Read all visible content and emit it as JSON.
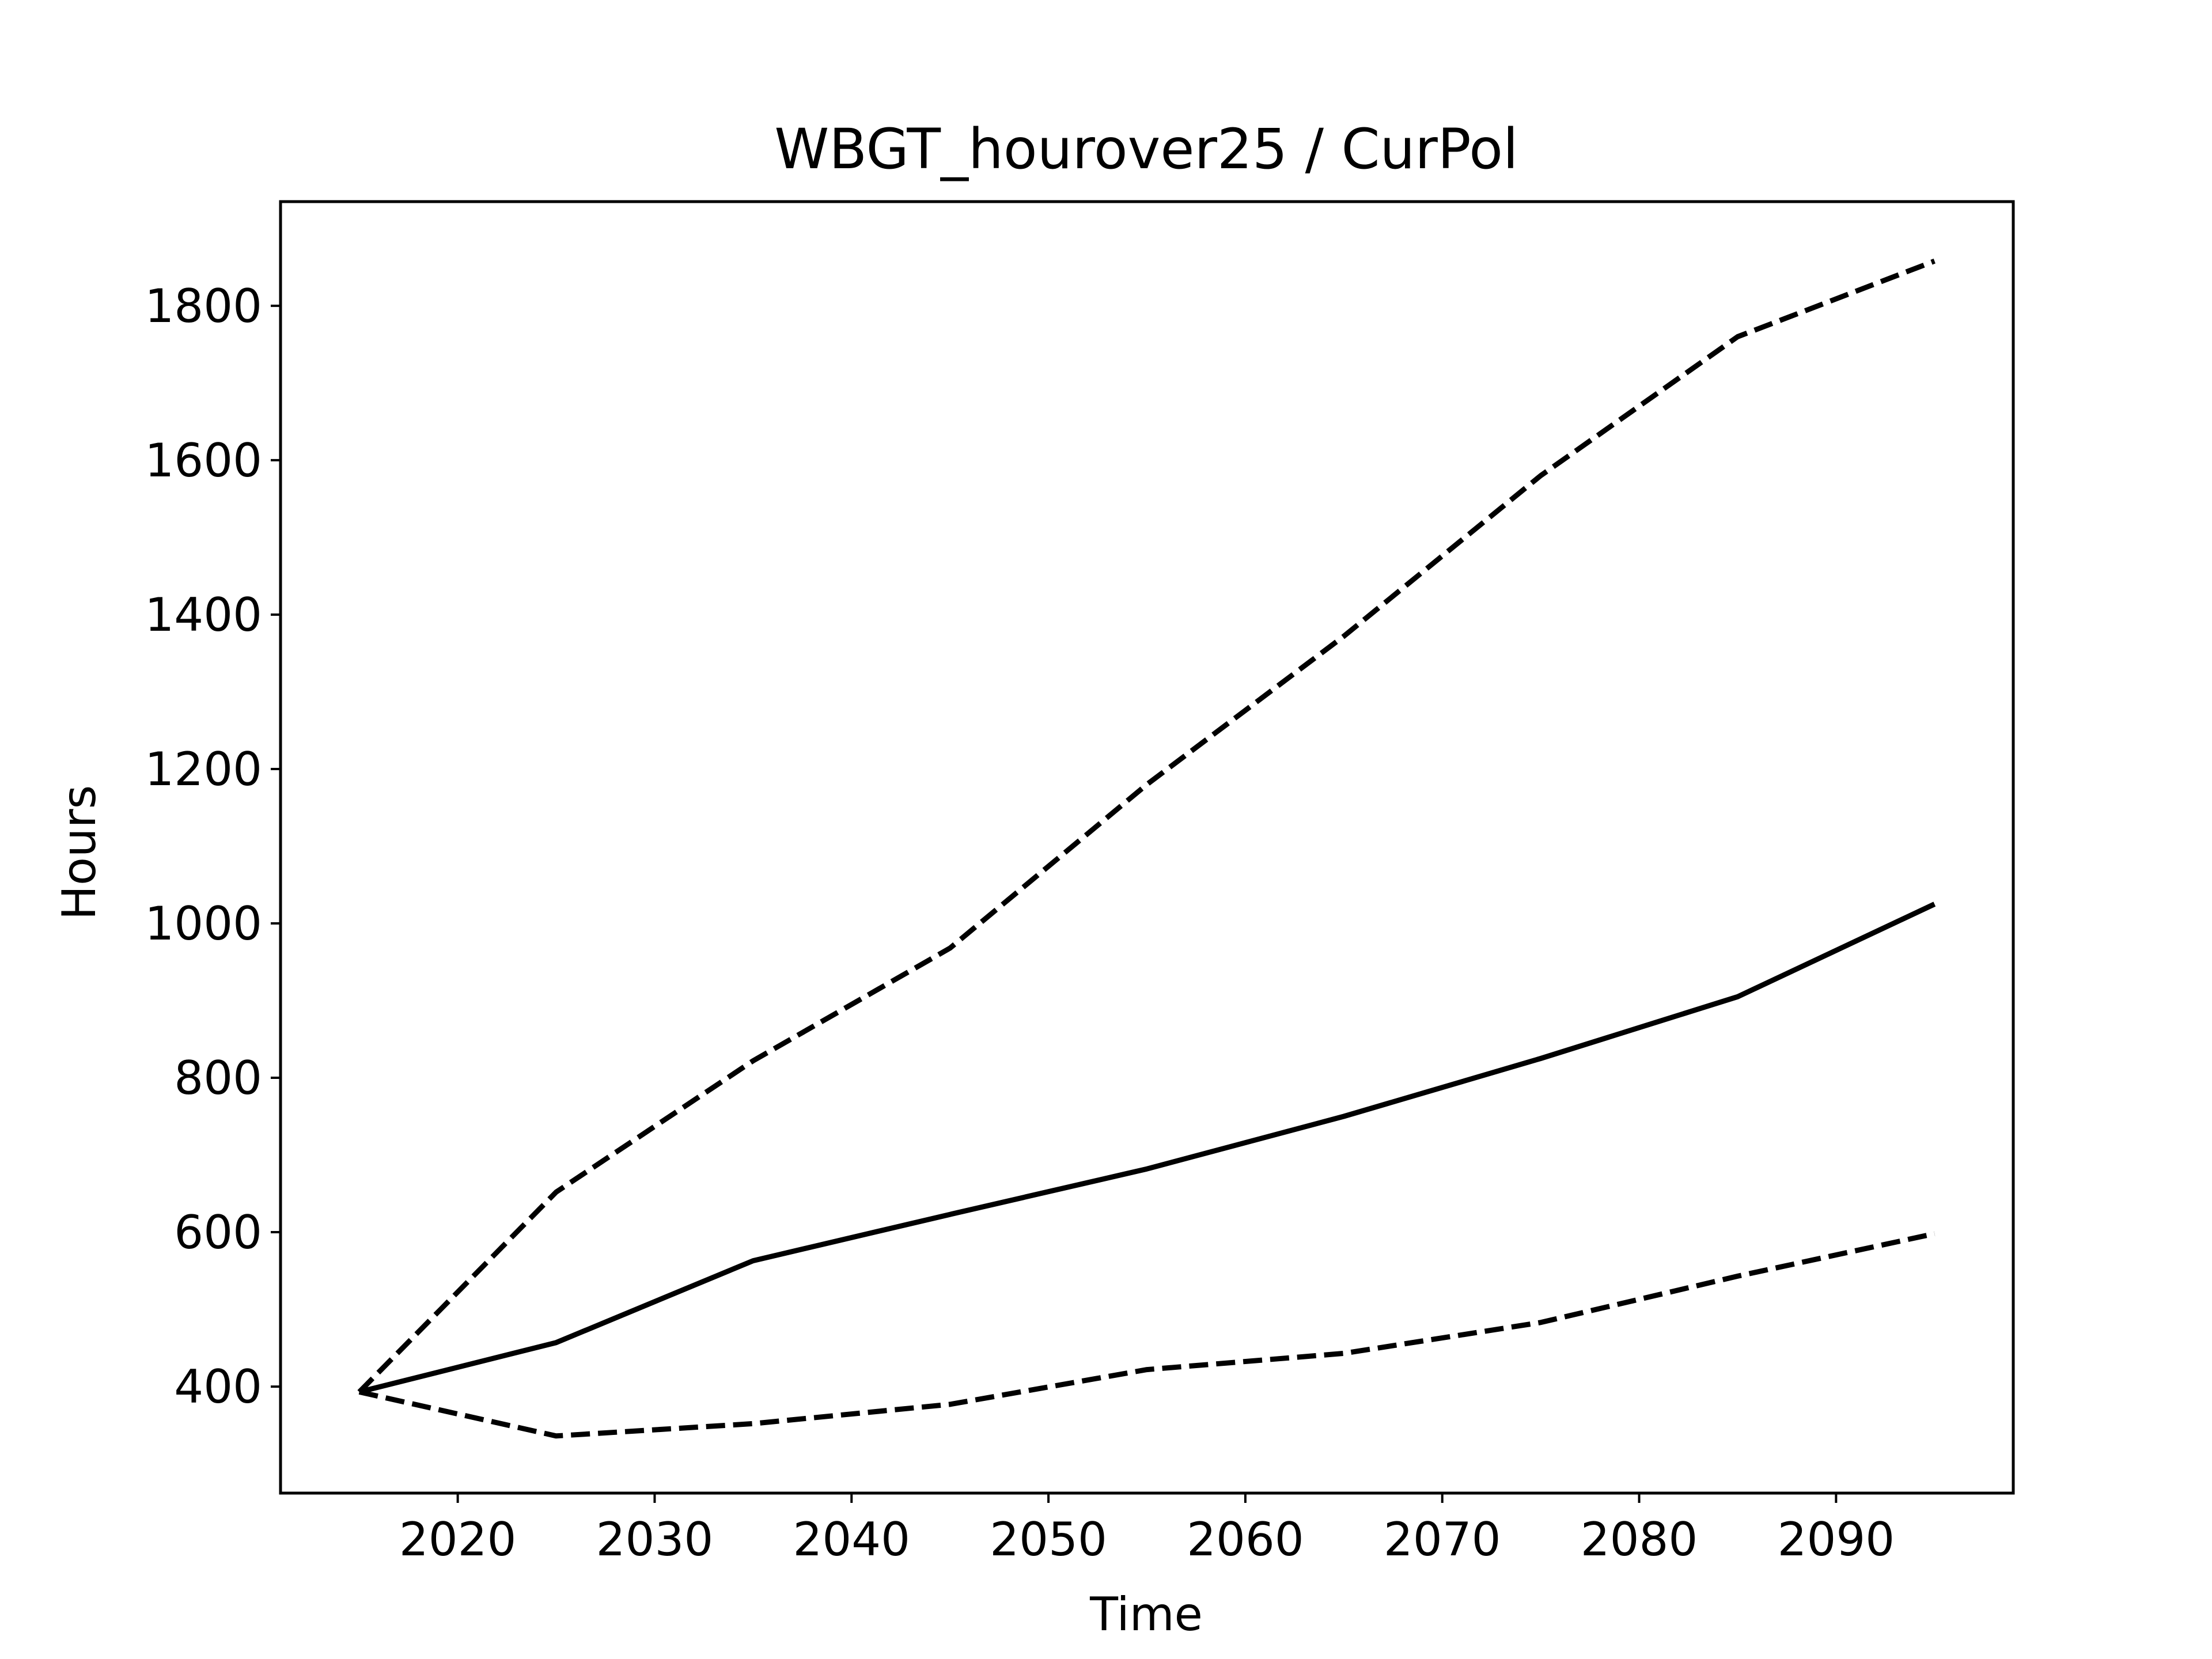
{
  "chart_data": {
    "type": "line",
    "title": "WBGT_hourover25 / CurPol",
    "xlabel": "Time",
    "ylabel": "Hours",
    "x": [
      2015,
      2025,
      2035,
      2045,
      2055,
      2065,
      2075,
      2085,
      2095
    ],
    "xticks": [
      2020,
      2030,
      2040,
      2050,
      2060,
      2070,
      2080,
      2090
    ],
    "yticks": [
      400,
      600,
      800,
      1000,
      1200,
      1400,
      1600,
      1800
    ],
    "xlim": [
      2011,
      2099
    ],
    "ylim": [
      262,
      1935
    ],
    "grid": false,
    "series": [
      {
        "style": "solid",
        "values": [
          393,
          457,
          563,
          623,
          682,
          750,
          825,
          905,
          1025
        ]
      },
      {
        "style": "dashed",
        "values": [
          393,
          652,
          822,
          968,
          1180,
          1372,
          1580,
          1760,
          1858
        ]
      },
      {
        "style": "dashed",
        "values": [
          393,
          336,
          352,
          377,
          422,
          443,
          483,
          543,
          598
        ]
      }
    ],
    "colors": {
      "line": "#000000",
      "frame": "#000000",
      "background": "#ffffff"
    }
  }
}
